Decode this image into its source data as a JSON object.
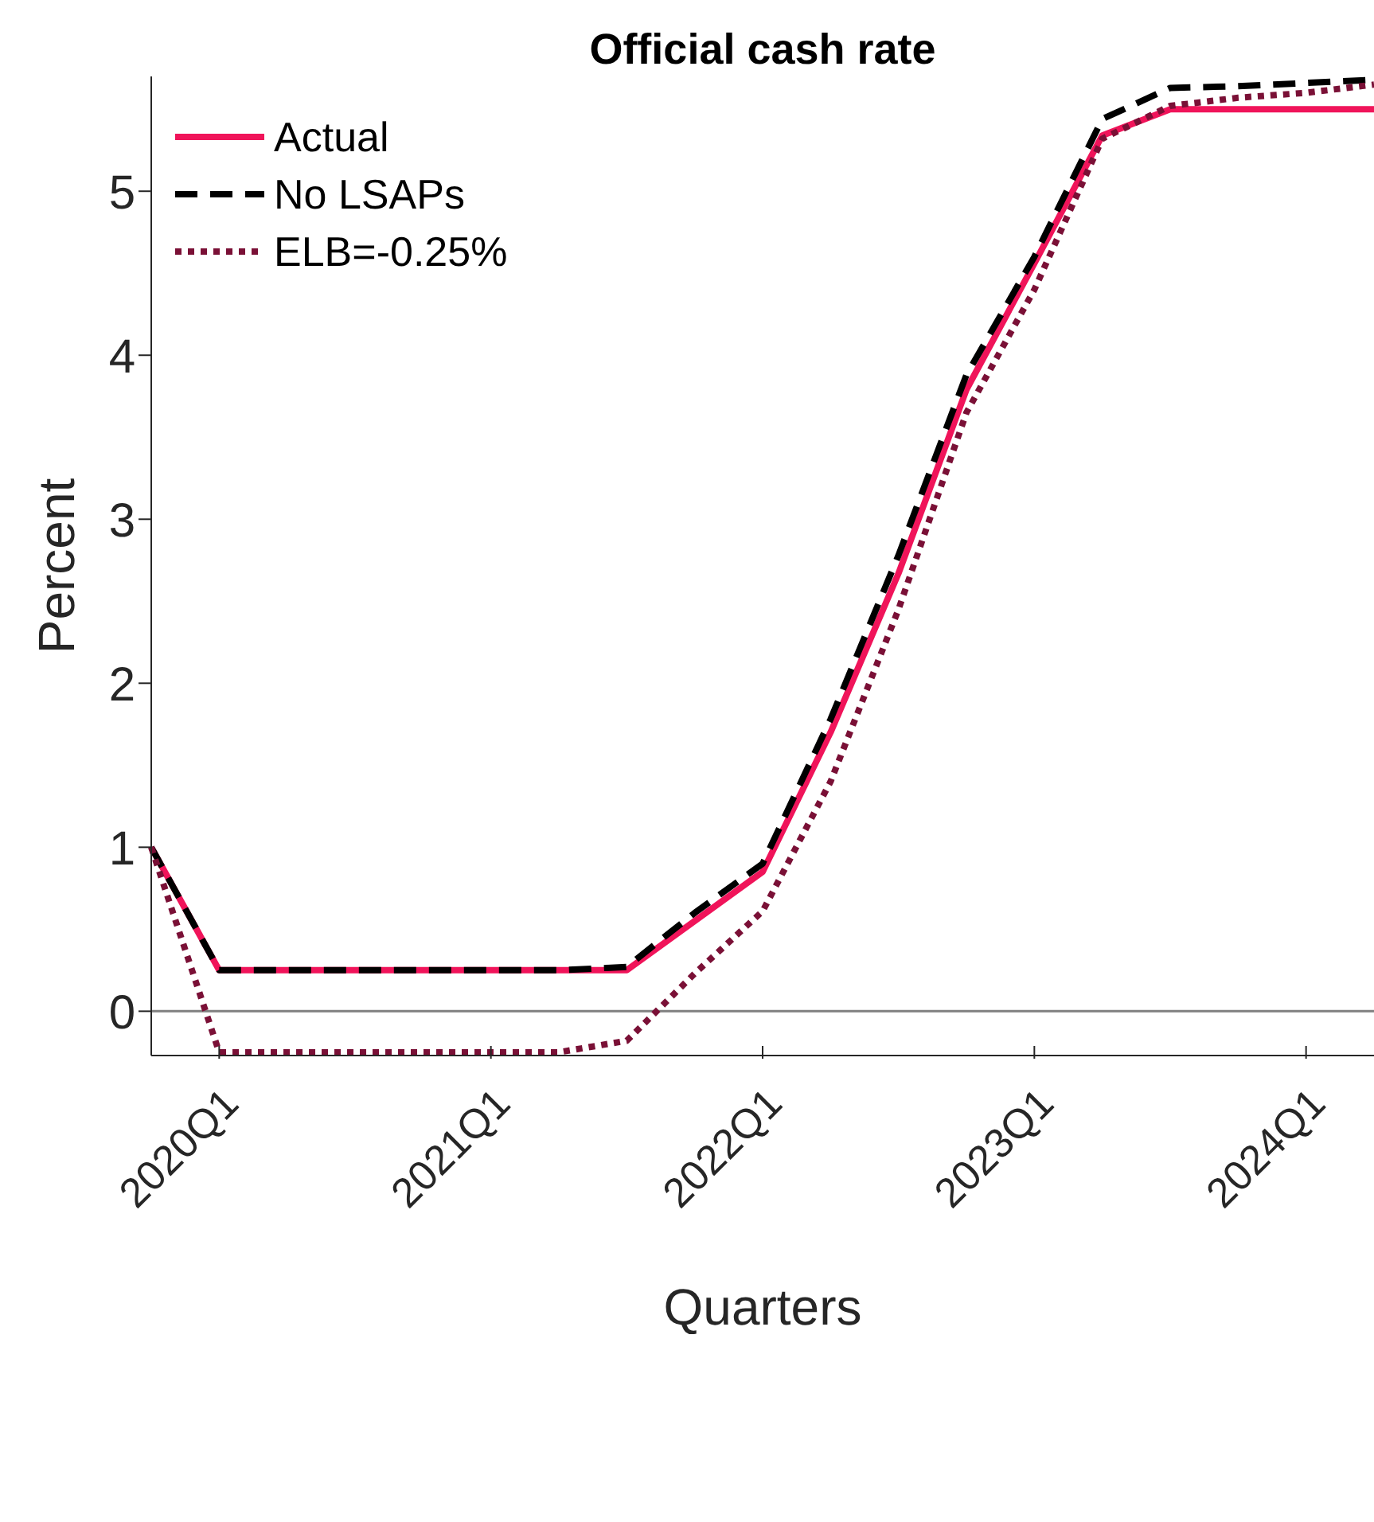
{
  "chart_data": {
    "type": "line",
    "title": "Official cash rate",
    "xlabel": "Quarters",
    "ylabel": "Percent",
    "categories": [
      null,
      "2020Q1",
      null,
      null,
      null,
      "2021Q1",
      null,
      null,
      null,
      "2022Q1",
      null,
      null,
      null,
      "2023Q1",
      null,
      null,
      null,
      "2024Q1",
      null
    ],
    "series": [
      {
        "name": "Actual",
        "color": "#f0145a",
        "line_style": "solid",
        "values": [
          1.0,
          0.25,
          0.25,
          0.25,
          0.25,
          0.25,
          0.25,
          0.25,
          0.55,
          0.85,
          1.7,
          2.67,
          3.79,
          4.56,
          5.34,
          5.5,
          5.5,
          5.5,
          5.5
        ]
      },
      {
        "name": "No LSAPs",
        "color": "#000000",
        "line_style": "dashed",
        "values": [
          1.0,
          0.25,
          0.25,
          0.25,
          0.25,
          0.25,
          0.25,
          0.27,
          0.6,
          0.9,
          1.78,
          2.78,
          3.88,
          4.6,
          5.44,
          5.63,
          5.64,
          5.66,
          5.68
        ]
      },
      {
        "name": "ELB=-0.25%",
        "color": "#7a1036",
        "line_style": "dotted",
        "values": [
          1.0,
          -0.25,
          -0.25,
          -0.25,
          -0.25,
          -0.25,
          -0.25,
          -0.18,
          0.23,
          0.61,
          1.4,
          2.45,
          3.65,
          4.4,
          5.32,
          5.52,
          5.57,
          5.6,
          5.65
        ]
      }
    ],
    "ylim": [
      -0.27,
      5.7
    ],
    "yticks": [
      0,
      1,
      2,
      3,
      4,
      5
    ],
    "ref_lines": [
      {
        "axis": "y",
        "value": 0,
        "color": "#808080"
      }
    ],
    "grid": false,
    "legend": "top left",
    "marker": "none"
  }
}
